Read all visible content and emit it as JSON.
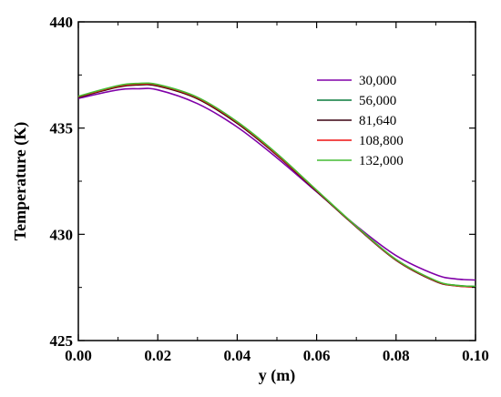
{
  "chart_data": {
    "type": "line",
    "title": "",
    "xlabel": "y (m)",
    "ylabel": "Temperature (K)",
    "xlim": [
      0.0,
      0.1
    ],
    "ylim": [
      425,
      440
    ],
    "x_ticks": [
      "0.00",
      "0.02",
      "0.04",
      "0.06",
      "0.08",
      "0.10"
    ],
    "y_ticks": [
      "425",
      "430",
      "435",
      "440"
    ],
    "grid": false,
    "legend_position": "upper-right",
    "x": [
      0.0,
      0.01,
      0.015,
      0.02,
      0.03,
      0.04,
      0.05,
      0.06,
      0.07,
      0.08,
      0.09,
      0.095,
      0.1
    ],
    "series": [
      {
        "name": "30,000",
        "color": "#8000a8",
        "values": [
          436.4,
          436.8,
          436.85,
          436.8,
          436.15,
          435.05,
          433.6,
          432.0,
          430.4,
          429.0,
          428.1,
          427.9,
          427.85
        ]
      },
      {
        "name": "56,000",
        "color": "#0a7a3c",
        "values": [
          436.45,
          436.95,
          437.05,
          437.0,
          436.4,
          435.25,
          433.75,
          432.05,
          430.35,
          428.8,
          427.8,
          427.6,
          427.55
        ]
      },
      {
        "name": "81,640",
        "color": "#3a0010",
        "values": [
          436.45,
          436.93,
          437.03,
          436.98,
          436.38,
          435.22,
          433.72,
          432.03,
          430.34,
          428.78,
          427.78,
          427.58,
          427.52
        ]
      },
      {
        "name": "108,800",
        "color": "#ee1111",
        "values": [
          436.48,
          436.97,
          437.07,
          437.02,
          436.42,
          435.27,
          433.76,
          432.06,
          430.36,
          428.8,
          427.8,
          427.58,
          427.52
        ]
      },
      {
        "name": "132,000",
        "color": "#44bb33",
        "values": [
          436.5,
          437.0,
          437.1,
          437.05,
          436.45,
          435.3,
          433.8,
          432.08,
          430.38,
          428.82,
          427.82,
          427.6,
          427.55
        ]
      }
    ]
  }
}
